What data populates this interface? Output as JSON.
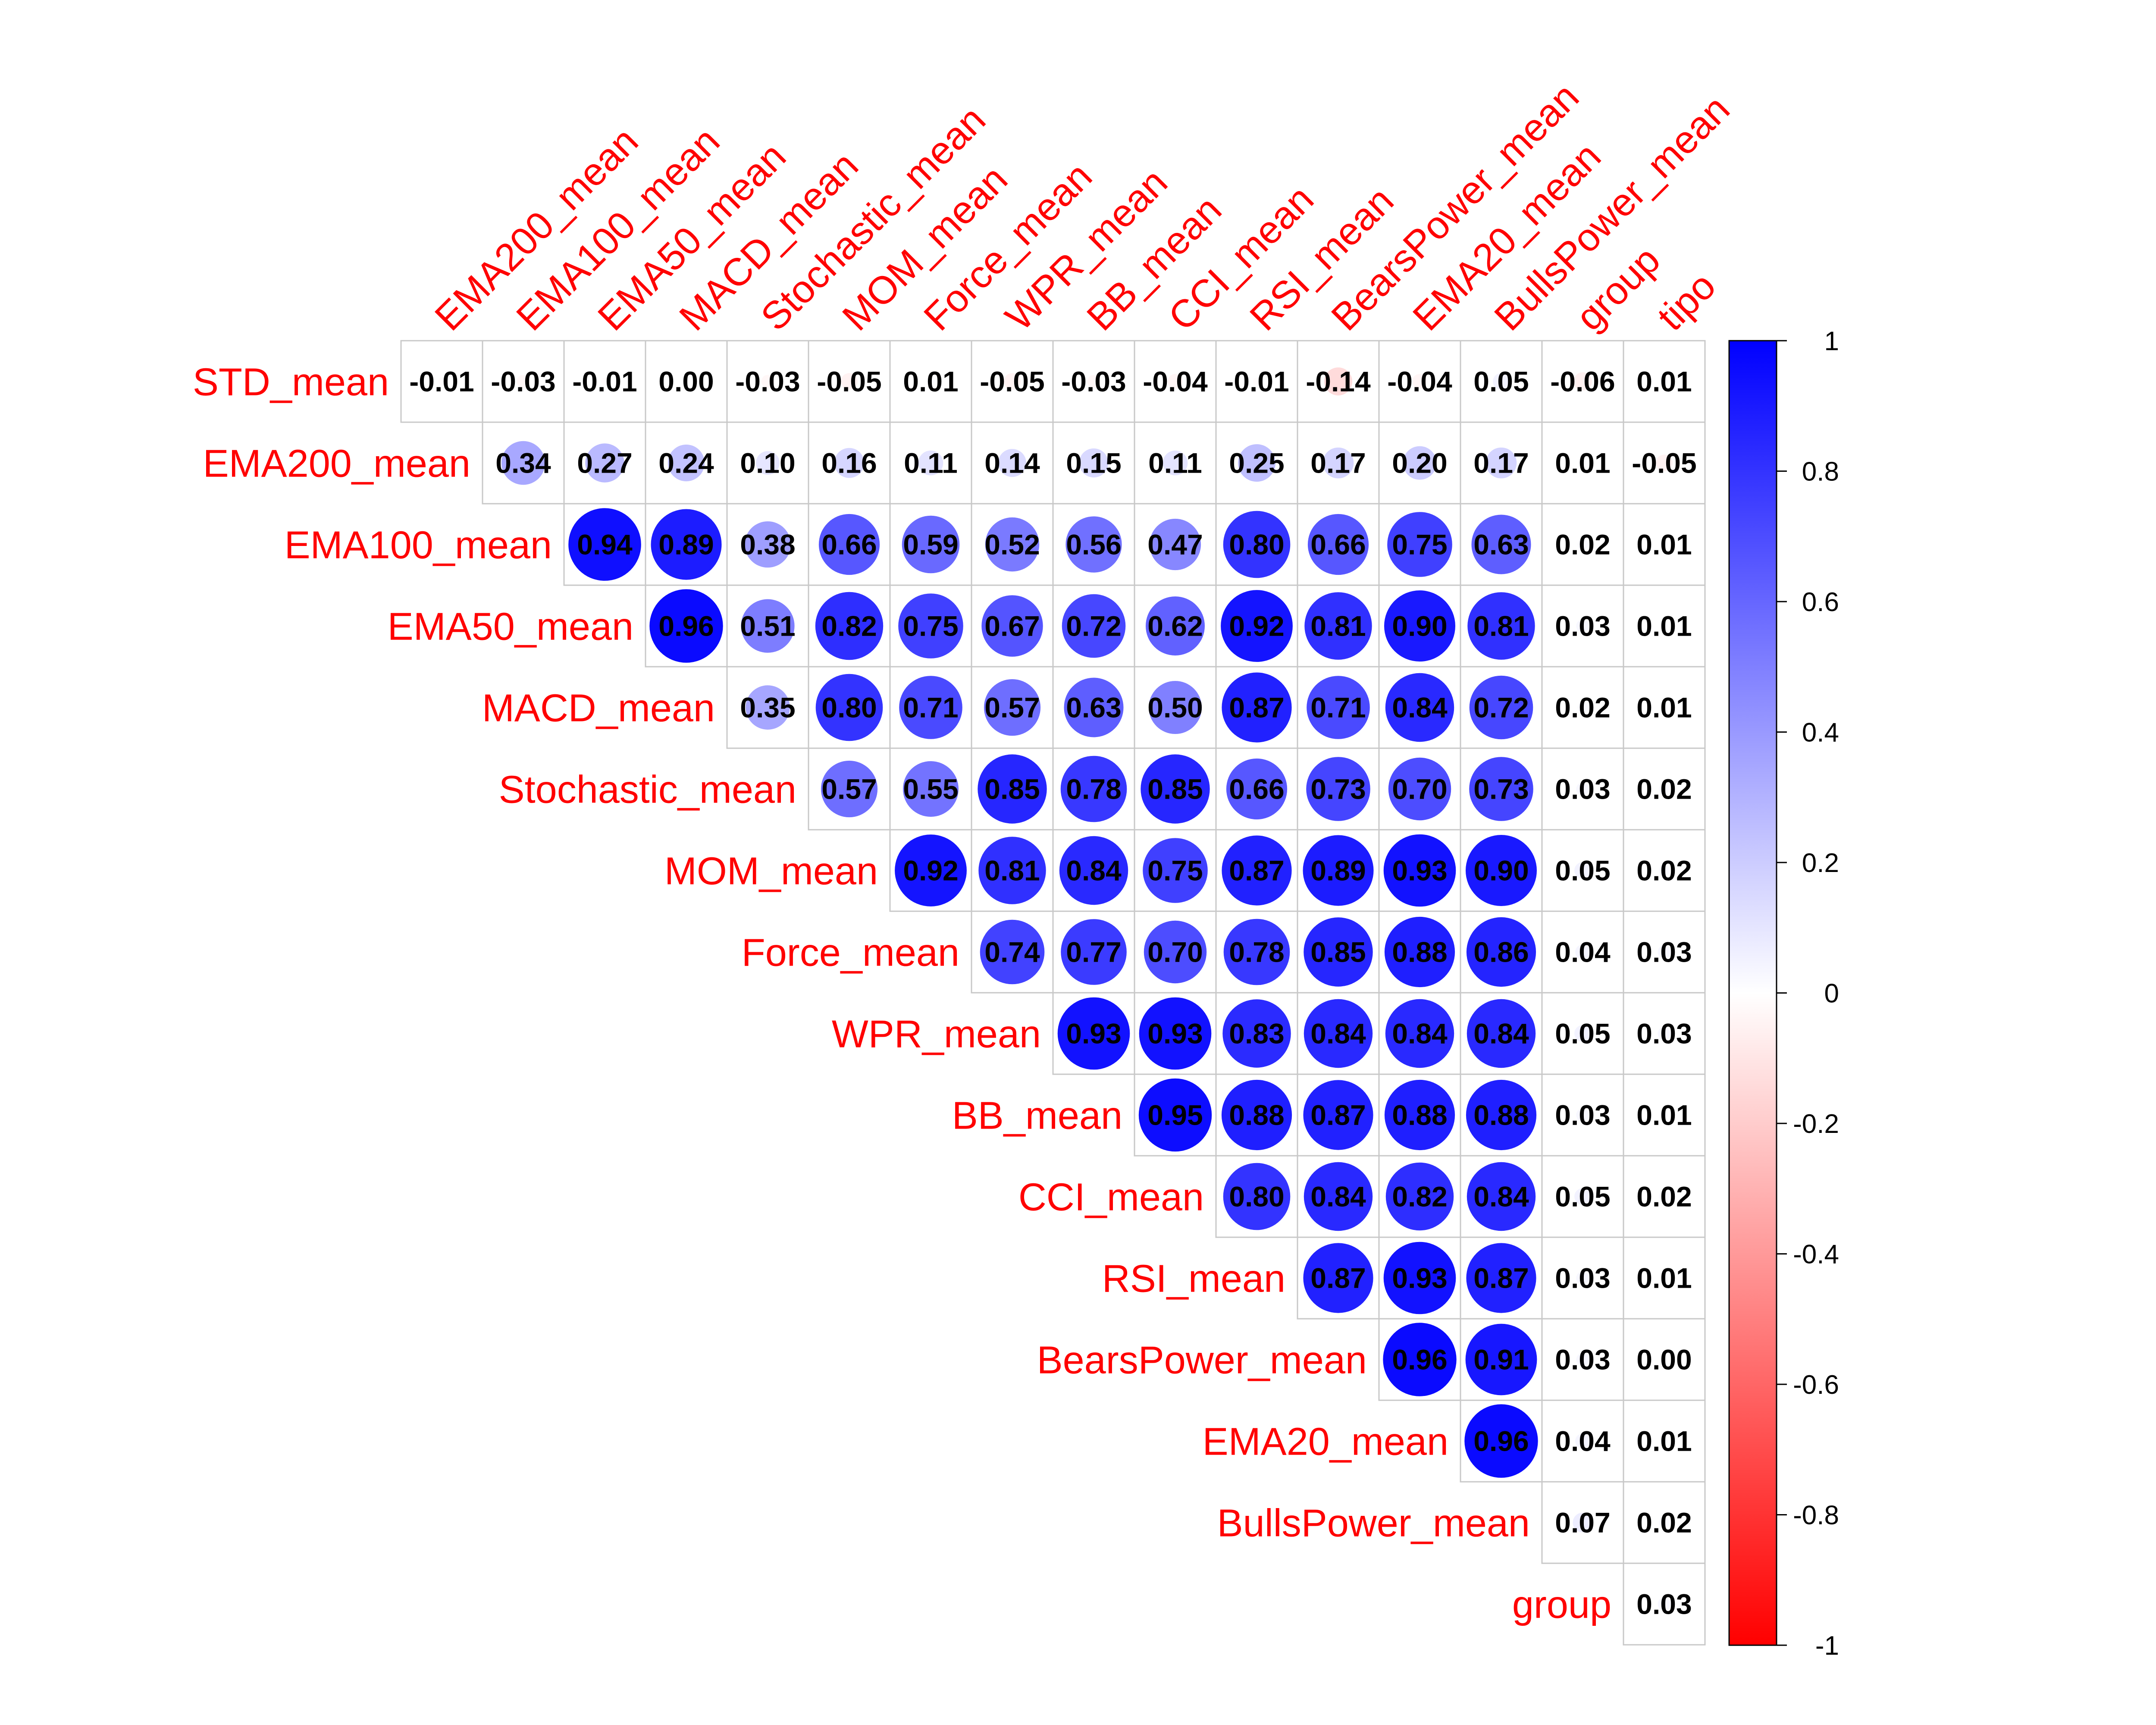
{
  "chart_data": {
    "type": "heatmap",
    "style": "upper-triangle correlation matrix, circles sized and colored by coefficient, coefficients printed in cells",
    "row_labels": [
      "STD_mean",
      "EMA200_mean",
      "EMA100_mean",
      "EMA50_mean",
      "MACD_mean",
      "Stochastic_mean",
      "MOM_mean",
      "Force_mean",
      "WPR_mean",
      "BB_mean",
      "CCI_mean",
      "RSI_mean",
      "BearsPower_mean",
      "EMA20_mean",
      "BullsPower_mean",
      "group"
    ],
    "col_labels": [
      "EMA200_mean",
      "EMA100_mean",
      "EMA50_mean",
      "MACD_mean",
      "Stochastic_mean",
      "MOM_mean",
      "Force_mean",
      "WPR_mean",
      "BB_mean",
      "CCI_mean",
      "RSI_mean",
      "BearsPower_mean",
      "EMA20_mean",
      "BullsPower_mean",
      "group",
      "tipo"
    ],
    "values": [
      [
        -0.01,
        -0.03,
        -0.01,
        0.0,
        -0.03,
        -0.05,
        0.01,
        -0.05,
        -0.03,
        -0.04,
        -0.01,
        -0.14,
        -0.04,
        0.05,
        -0.06,
        0.01
      ],
      [
        0.34,
        0.27,
        0.24,
        0.1,
        0.16,
        0.11,
        0.14,
        0.15,
        0.11,
        0.25,
        0.17,
        0.2,
        0.17,
        0.01,
        -0.05
      ],
      [
        0.94,
        0.89,
        0.38,
        0.66,
        0.59,
        0.52,
        0.56,
        0.47,
        0.8,
        0.66,
        0.75,
        0.63,
        0.02,
        0.01
      ],
      [
        0.96,
        0.51,
        0.82,
        0.75,
        0.67,
        0.72,
        0.62,
        0.92,
        0.81,
        0.9,
        0.81,
        0.03,
        0.01
      ],
      [
        0.35,
        0.8,
        0.71,
        0.57,
        0.63,
        0.5,
        0.87,
        0.71,
        0.84,
        0.72,
        0.02,
        0.01
      ],
      [
        0.57,
        0.55,
        0.85,
        0.78,
        0.85,
        0.66,
        0.73,
        0.7,
        0.73,
        0.03,
        0.02
      ],
      [
        0.92,
        0.81,
        0.84,
        0.75,
        0.87,
        0.89,
        0.93,
        0.9,
        0.05,
        0.02
      ],
      [
        0.74,
        0.77,
        0.7,
        0.78,
        0.85,
        0.88,
        0.86,
        0.04,
        0.03
      ],
      [
        0.93,
        0.93,
        0.83,
        0.84,
        0.84,
        0.84,
        0.05,
        0.03
      ],
      [
        0.95,
        0.88,
        0.87,
        0.88,
        0.88,
        0.03,
        0.01
      ],
      [
        0.8,
        0.84,
        0.82,
        0.84,
        0.05,
        0.02
      ],
      [
        0.87,
        0.93,
        0.87,
        0.03,
        0.01
      ],
      [
        0.96,
        0.91,
        0.03,
        0.0
      ],
      [
        0.96,
        0.04,
        0.01
      ],
      [
        0.07,
        0.02
      ],
      [
        0.03
      ]
    ],
    "value_labels": [
      [
        "-0.01",
        "-0.03",
        "-0.01",
        "0.00",
        "-0.03",
        "-0.05",
        "0.01",
        "-0.05",
        "-0.03",
        "-0.04",
        "-0.01",
        "-0.14",
        "-0.04",
        "0.05",
        "-0.06",
        "0.01"
      ],
      [
        "0.34",
        "0.27",
        "0.24",
        "0.10",
        "0.16",
        "0.11",
        "0.14",
        "0.15",
        "0.11",
        "0.25",
        "0.17",
        "0.20",
        "0.17",
        "0.01",
        "-0.05"
      ],
      [
        "0.94",
        "0.89",
        "0.38",
        "0.66",
        "0.59",
        "0.52",
        "0.56",
        "0.47",
        "0.80",
        "0.66",
        "0.75",
        "0.63",
        "0.02",
        "0.01"
      ],
      [
        "0.96",
        "0.51",
        "0.82",
        "0.75",
        "0.67",
        "0.72",
        "0.62",
        "0.92",
        "0.81",
        "0.90",
        "0.81",
        "0.03",
        "0.01"
      ],
      [
        "0.35",
        "0.80",
        "0.71",
        "0.57",
        "0.63",
        "0.50",
        "0.87",
        "0.71",
        "0.84",
        "0.72",
        "0.02",
        "0.01"
      ],
      [
        "0.57",
        "0.55",
        "0.85",
        "0.78",
        "0.85",
        "0.66",
        "0.73",
        "0.70",
        "0.73",
        "0.03",
        "0.02"
      ],
      [
        "0.92",
        "0.81",
        "0.84",
        "0.75",
        "0.87",
        "0.89",
        "0.93",
        "0.90",
        "0.05",
        "0.02"
      ],
      [
        "0.74",
        "0.77",
        "0.70",
        "0.78",
        "0.85",
        "0.88",
        "0.86",
        "0.04",
        "0.03"
      ],
      [
        "0.93",
        "0.93",
        "0.83",
        "0.84",
        "0.84",
        "0.84",
        "0.05",
        "0.03"
      ],
      [
        "0.95",
        "0.88",
        "0.87",
        "0.88",
        "0.88",
        "0.03",
        "0.01"
      ],
      [
        "0.80",
        "0.84",
        "0.82",
        "0.84",
        "0.05",
        "0.02"
      ],
      [
        "0.87",
        "0.93",
        "0.87",
        "0.03",
        "0.01"
      ],
      [
        "0.96",
        "0.91",
        "0.03",
        "0.00"
      ],
      [
        "0.96",
        "0.04",
        "0.01"
      ],
      [
        "0.07",
        "0.02"
      ],
      [
        "0.03"
      ]
    ],
    "colorbar": {
      "range": [
        -1,
        1
      ],
      "ticks": [
        1,
        0.8,
        0.6,
        0.4,
        0.2,
        0,
        -0.2,
        -0.4,
        -0.6,
        -0.8,
        -1
      ],
      "tick_labels": [
        "1",
        "0.8",
        "0.6",
        "0.4",
        "0.2",
        "0",
        "-0.2",
        "-0.4",
        "-0.6",
        "-0.8",
        "-1"
      ],
      "positive_color": "#0000ff",
      "negative_color": "#ff0000",
      "zero_color": "#ffffff"
    },
    "label_color": "#ff0000",
    "grid": true,
    "legend_placement": "right"
  }
}
